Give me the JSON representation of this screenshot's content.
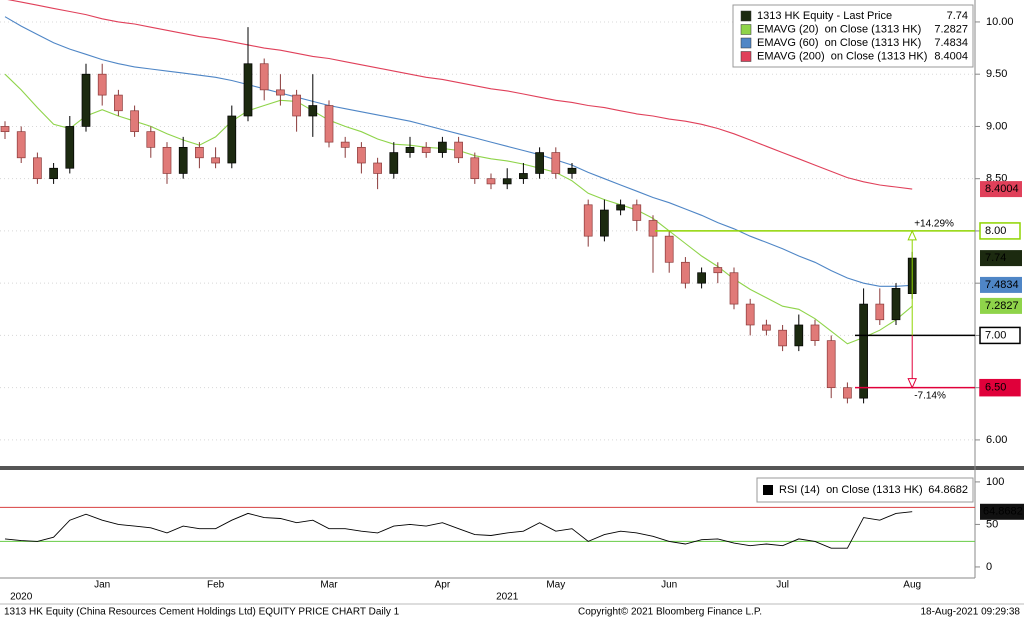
{
  "chart_data": [
    {
      "type": "candlestick",
      "categories": [
        null,
        null,
        null,
        null,
        null,
        null,
        "Jan",
        null,
        null,
        null,
        null,
        null,
        null,
        "Feb",
        null,
        null,
        null,
        null,
        null,
        null,
        "Mar",
        null,
        null,
        null,
        null,
        null,
        null,
        "Apr",
        null,
        null,
        null,
        null,
        null,
        null,
        "May",
        null,
        null,
        null,
        null,
        null,
        null,
        "Jun",
        null,
        null,
        null,
        null,
        null,
        null,
        "Jul",
        null,
        null,
        null,
        null,
        null,
        null,
        null,
        "Aug"
      ],
      "year_categories": [
        null,
        "2020",
        null,
        null,
        null,
        null,
        null,
        null,
        null,
        null,
        null,
        null,
        null,
        null,
        null,
        null,
        null,
        null,
        null,
        null,
        null,
        null,
        null,
        null,
        null,
        null,
        null,
        null,
        null,
        null,
        null,
        "2021",
        null,
        null,
        null,
        null,
        null,
        null,
        null,
        null,
        null,
        null,
        null,
        null,
        null,
        null,
        null,
        null,
        null,
        null,
        null,
        null,
        null,
        null,
        null,
        null,
        null
      ],
      "ylim": [
        5.76,
        10.21
      ],
      "yticks": [
        {
          "value": 6,
          "label": "6.00"
        },
        {
          "value": 6.5,
          "label": "6.50"
        },
        {
          "value": 7,
          "label": "7.00"
        },
        {
          "value": 7.5,
          "label": "7.50"
        },
        {
          "value": 8,
          "label": "8.00"
        },
        {
          "value": 8.5,
          "label": "8.50"
        },
        {
          "value": 9,
          "label": "9.00"
        },
        {
          "value": 9.5,
          "label": "9.50"
        },
        {
          "value": 10,
          "label": "10.00"
        }
      ],
      "grid": true,
      "series": [
        {
          "name": "1313 HK Equity - Last Price",
          "color": "#1c2a10",
          "down_color": "#e07a78",
          "last": 7.74,
          "open": [
            9.0,
            8.95,
            8.7,
            8.5,
            8.6,
            9.0,
            9.5,
            9.3,
            9.15,
            8.95,
            8.8,
            8.55,
            8.8,
            8.7,
            8.65,
            9.1,
            9.6,
            9.35,
            9.3,
            9.1,
            9.2,
            8.85,
            8.8,
            8.65,
            8.55,
            8.75,
            8.8,
            8.75,
            8.85,
            8.7,
            8.5,
            8.45,
            8.5,
            8.55,
            8.75,
            8.55,
            8.25,
            7.95,
            8.2,
            8.25,
            8.1,
            7.95,
            7.7,
            7.5,
            7.65,
            7.6,
            7.3,
            7.1,
            7.05,
            6.9,
            7.1,
            6.95,
            6.5,
            6.4,
            7.3,
            7.15,
            7.4
          ],
          "high": [
            9.05,
            9.0,
            8.75,
            8.65,
            9.1,
            9.6,
            9.6,
            9.35,
            9.2,
            9.0,
            8.85,
            8.9,
            8.85,
            8.8,
            9.2,
            9.95,
            9.65,
            9.5,
            9.35,
            9.5,
            9.25,
            8.9,
            8.85,
            8.7,
            8.85,
            8.9,
            8.85,
            8.9,
            8.9,
            8.75,
            8.55,
            8.6,
            8.65,
            8.8,
            8.8,
            8.65,
            8.3,
            8.3,
            8.3,
            8.3,
            8.15,
            8.0,
            7.75,
            7.65,
            7.7,
            7.65,
            7.35,
            7.15,
            7.1,
            7.2,
            7.15,
            7.0,
            6.55,
            7.45,
            7.45,
            7.5,
            7.8
          ],
          "low": [
            8.88,
            8.65,
            8.45,
            8.45,
            8.55,
            8.95,
            9.2,
            9.1,
            8.9,
            8.7,
            8.45,
            8.5,
            8.6,
            8.6,
            8.6,
            9.05,
            9.25,
            9.2,
            8.95,
            8.9,
            8.8,
            8.7,
            8.55,
            8.4,
            8.5,
            8.7,
            8.7,
            8.7,
            8.65,
            8.45,
            8.4,
            8.4,
            8.45,
            8.5,
            8.5,
            8.5,
            7.85,
            7.9,
            8.15,
            8.0,
            7.6,
            7.6,
            7.45,
            7.45,
            7.5,
            7.25,
            7.0,
            7.0,
            6.85,
            6.85,
            6.9,
            6.4,
            6.35,
            6.35,
            7.1,
            7.1,
            7.35
          ],
          "close": [
            8.95,
            8.7,
            8.5,
            8.6,
            9.0,
            9.5,
            9.3,
            9.15,
            8.95,
            8.8,
            8.55,
            8.8,
            8.7,
            8.65,
            9.1,
            9.6,
            9.35,
            9.3,
            9.1,
            9.2,
            8.85,
            8.8,
            8.65,
            8.55,
            8.75,
            8.8,
            8.75,
            8.85,
            8.7,
            8.5,
            8.45,
            8.5,
            8.55,
            8.75,
            8.55,
            8.6,
            7.95,
            8.2,
            8.25,
            8.1,
            7.95,
            7.7,
            7.5,
            7.6,
            7.6,
            7.3,
            7.1,
            7.05,
            6.9,
            7.1,
            6.95,
            6.5,
            6.4,
            7.3,
            7.15,
            7.45,
            7.74
          ]
        },
        {
          "name": "EMAVG (20)  on Close (1313 HK)",
          "color": "#8fd44a",
          "last": 7.2827,
          "values": [
            9.5,
            9.35,
            9.18,
            9.02,
            8.98,
            9.1,
            9.16,
            9.1,
            9.05,
            9.0,
            8.93,
            8.87,
            8.82,
            8.9,
            9.05,
            9.15,
            9.2,
            9.25,
            9.24,
            9.15,
            9.06,
            9.0,
            8.95,
            8.88,
            8.83,
            8.82,
            8.8,
            8.79,
            8.77,
            8.72,
            8.69,
            8.67,
            8.64,
            8.6,
            8.56,
            8.48,
            8.36,
            8.3,
            8.25,
            8.2,
            8.12,
            8.0,
            7.88,
            7.76,
            7.66,
            7.54,
            7.44,
            7.36,
            7.28,
            7.25,
            7.16,
            7.04,
            6.92,
            6.98,
            7.05,
            7.15,
            7.28
          ]
        },
        {
          "name": "EMAVG (60)  on Close (1313 HK)",
          "color": "#4f86c6",
          "last": 7.4834,
          "values": [
            10.05,
            9.96,
            9.88,
            9.8,
            9.74,
            9.69,
            9.64,
            9.6,
            9.57,
            9.55,
            9.53,
            9.51,
            9.49,
            9.47,
            9.44,
            9.4,
            9.36,
            9.32,
            9.28,
            9.24,
            9.2,
            9.17,
            9.14,
            9.11,
            9.08,
            9.05,
            9.01,
            8.97,
            8.93,
            8.89,
            8.85,
            8.81,
            8.77,
            8.73,
            8.68,
            8.63,
            8.56,
            8.5,
            8.44,
            8.38,
            8.32,
            8.27,
            8.21,
            8.15,
            8.08,
            8.02,
            7.95,
            7.89,
            7.83,
            7.76,
            7.7,
            7.62,
            7.55,
            7.5,
            7.47,
            7.47,
            7.48
          ]
        },
        {
          "name": "EMAVG (200)  on Close (1313 HK)",
          "color": "#e0405a",
          "last": 8.4004,
          "values": [
            10.22,
            10.19,
            10.16,
            10.13,
            10.1,
            10.07,
            10.03,
            10.0,
            9.98,
            9.95,
            9.92,
            9.89,
            9.86,
            9.84,
            9.81,
            9.78,
            9.75,
            9.73,
            9.7,
            9.67,
            9.65,
            9.62,
            9.59,
            9.56,
            9.53,
            9.5,
            9.47,
            9.45,
            9.42,
            9.39,
            9.36,
            9.34,
            9.31,
            9.28,
            9.25,
            9.23,
            9.2,
            9.18,
            9.15,
            9.12,
            9.1,
            9.07,
            9.05,
            9.02,
            8.98,
            8.93,
            8.87,
            8.81,
            8.75,
            8.69,
            8.63,
            8.57,
            8.51,
            8.47,
            8.44,
            8.42,
            8.4
          ]
        }
      ],
      "levels": [
        {
          "price": {
            "value": 8,
            "label": "8.00"
          },
          "change": "+14.29%",
          "color": "#8fd400"
        },
        {
          "price": {
            "value": 7,
            "label": "7.00"
          },
          "color": "#000000"
        },
        {
          "price": {
            "value": 6.5,
            "label": "6.50"
          },
          "change": "-7.14%",
          "color": "#e0003a"
        }
      ]
    },
    {
      "type": "line",
      "ylim": [
        -13,
        114
      ],
      "yticks": [
        0,
        50,
        100
      ],
      "bands": [
        {
          "value": 70,
          "color": "#d84040"
        },
        {
          "value": 30,
          "color": "#66cc44"
        }
      ],
      "series": [
        {
          "name": "RSI (14)  on Close (1313 HK)",
          "color": "#000000",
          "last": 64.8682,
          "values": [
            33,
            31,
            30,
            35,
            55,
            62,
            55,
            50,
            48,
            46,
            40,
            48,
            45,
            45,
            55,
            63,
            58,
            57,
            52,
            55,
            45,
            45,
            42,
            40,
            48,
            50,
            48,
            52,
            45,
            38,
            37,
            40,
            42,
            52,
            42,
            45,
            30,
            38,
            42,
            40,
            36,
            30,
            27,
            32,
            33,
            28,
            25,
            27,
            25,
            33,
            30,
            22,
            22,
            58,
            55,
            63,
            65
          ]
        }
      ]
    }
  ],
  "footer": {
    "left": "1313 HK Equity (China Resources Cement Holdings Ltd) EQUITY PRICE CHART  Daily 1",
    "center": "Copyright© 2021 Bloomberg Finance L.P.",
    "right": "18-Aug-2021 09:29:38"
  }
}
